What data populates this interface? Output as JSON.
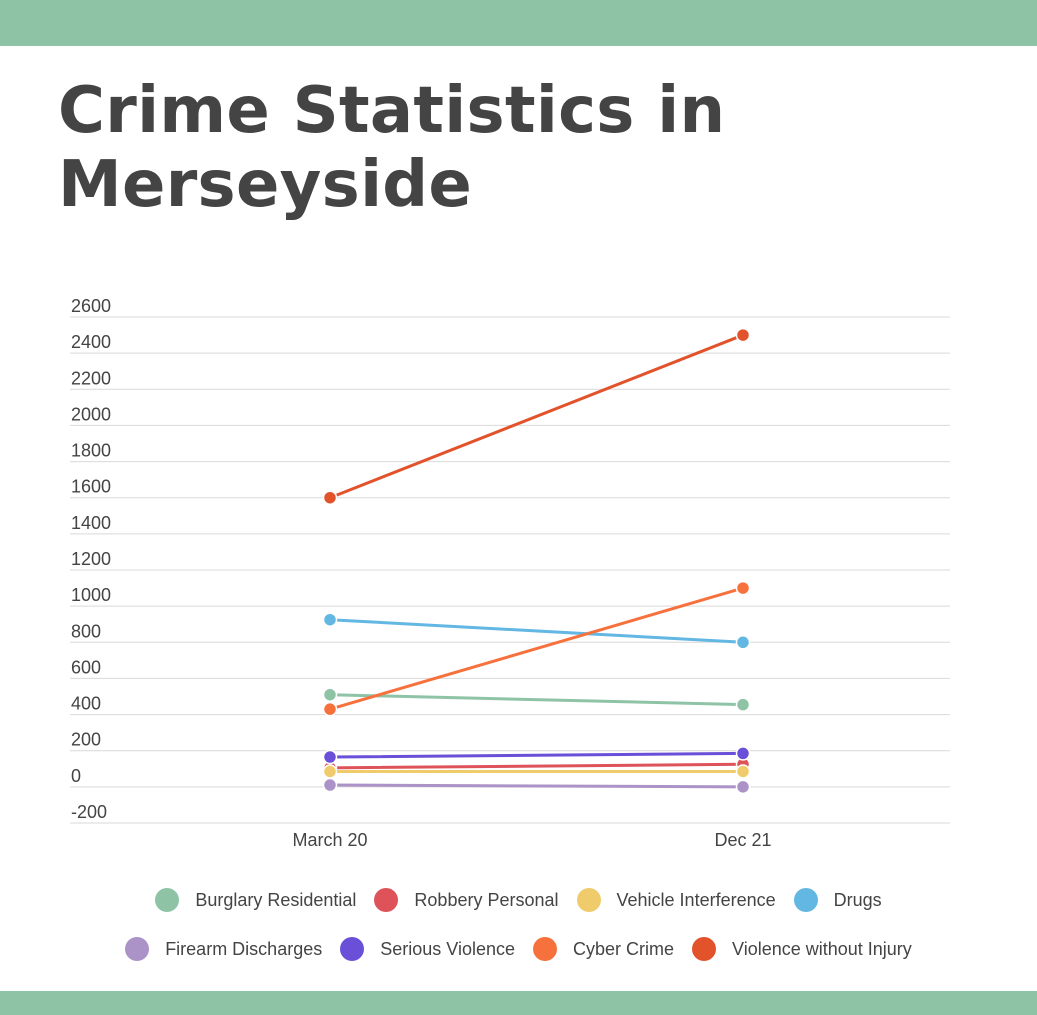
{
  "page": {
    "title": "Crime Statistics in Merseyside",
    "band_color": "#8fc3a6",
    "text_color": "#444444"
  },
  "chart_data": {
    "type": "line",
    "title": "Crime Statistics in Merseyside",
    "xlabel": "",
    "ylabel": "",
    "categories": [
      "March 20",
      "Dec 21"
    ],
    "ylim": [
      -200,
      2600
    ],
    "yticks": [
      -200,
      0,
      200,
      400,
      600,
      800,
      1000,
      1200,
      1400,
      1600,
      1800,
      2000,
      2200,
      2400,
      2600
    ],
    "grid": true,
    "legend": "bottom",
    "series": [
      {
        "name": "Burglary Residential",
        "color": "#8fc3a6",
        "values": [
          510,
          455
        ]
      },
      {
        "name": "Robbery Personal",
        "color": "#dd5359",
        "values": [
          105,
          125
        ]
      },
      {
        "name": "Vehicle Interference",
        "color": "#f0cb6b",
        "values": [
          85,
          85
        ]
      },
      {
        "name": "Drugs",
        "color": "#62b7e3",
        "values": [
          925,
          800
        ]
      },
      {
        "name": "Firearm Discharges",
        "color": "#ab92c7",
        "values": [
          10,
          0
        ]
      },
      {
        "name": "Serious Violence",
        "color": "#6a4fd8",
        "values": [
          165,
          185
        ]
      },
      {
        "name": "Cyber Crime",
        "color": "#f7713d",
        "values": [
          430,
          1100
        ]
      },
      {
        "name": "Violence without Injury",
        "color": "#e2532c",
        "values": [
          1600,
          2500
        ]
      }
    ]
  }
}
